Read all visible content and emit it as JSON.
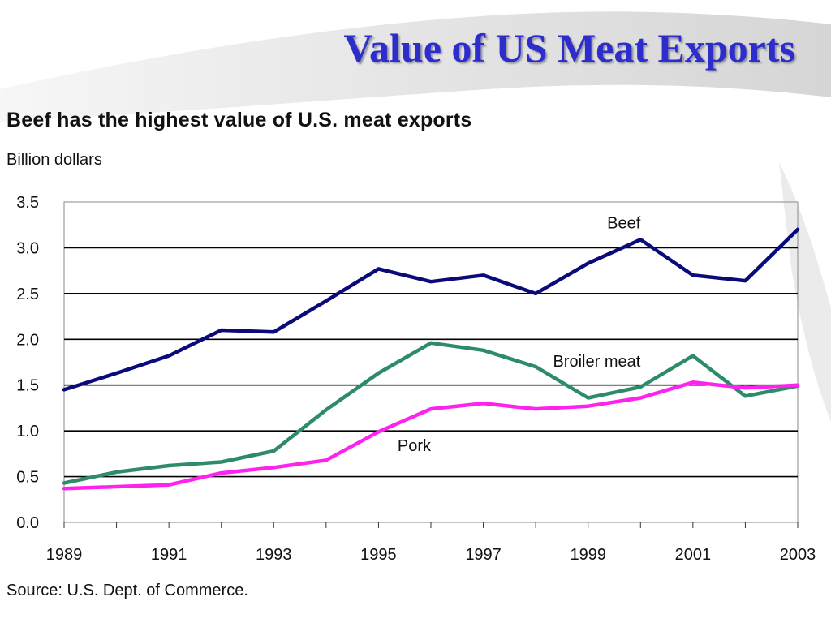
{
  "slide": {
    "title": "Value of US Meat Exports"
  },
  "chart_data": {
    "type": "line",
    "title": "Beef has the highest value of U.S. meat exports",
    "ylabel": "Billion dollars",
    "xlabel": "",
    "ylim": [
      0,
      3.5
    ],
    "xlim": [
      1989,
      2003
    ],
    "y_ticks": [
      "0.0",
      "0.5",
      "1.0",
      "1.5",
      "2.0",
      "2.5",
      "3.0",
      "3.5"
    ],
    "x_tick_labels": [
      "1989",
      "1991",
      "1993",
      "1995",
      "1997",
      "1999",
      "2001",
      "2003"
    ],
    "grid": "horizontal",
    "x": [
      1989,
      1990,
      1991,
      1992,
      1993,
      1994,
      1995,
      1996,
      1997,
      1998,
      1999,
      2000,
      2001,
      2002,
      2003
    ],
    "series": [
      {
        "name": "Beef",
        "color": "#0a0a7a",
        "values": [
          1.45,
          1.63,
          1.82,
          2.1,
          2.08,
          2.42,
          2.77,
          2.63,
          2.7,
          2.5,
          2.83,
          3.09,
          2.7,
          2.64,
          3.2
        ]
      },
      {
        "name": "Broiler meat",
        "color": "#2e8b6a",
        "values": [
          0.43,
          0.55,
          0.62,
          0.66,
          0.78,
          1.23,
          1.63,
          1.96,
          1.88,
          1.7,
          1.36,
          1.48,
          1.82,
          1.38,
          1.49
        ]
      },
      {
        "name": "Pork",
        "color": "#ff22ee",
        "values": [
          0.37,
          0.39,
          0.41,
          0.54,
          0.6,
          0.68,
          0.99,
          1.24,
          1.3,
          1.24,
          1.27,
          1.36,
          1.53,
          1.47,
          1.5
        ]
      }
    ],
    "source": "Source: U.S. Dept. of Commerce."
  }
}
